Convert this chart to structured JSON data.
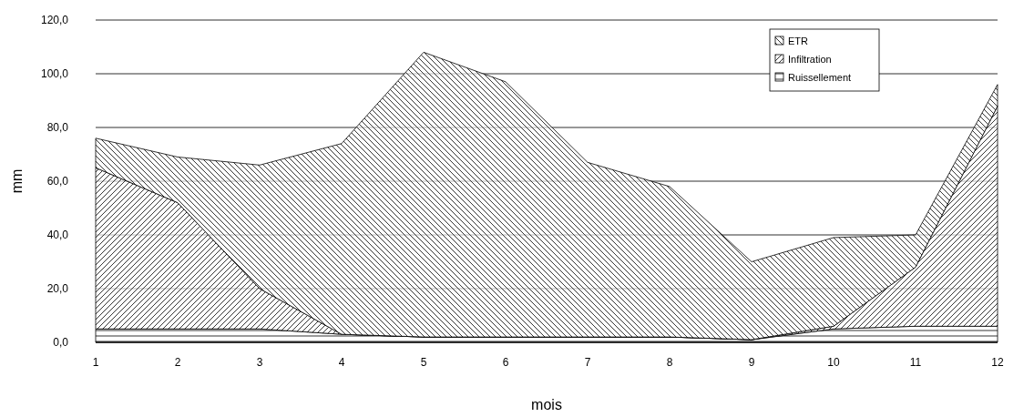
{
  "chart_data": {
    "type": "area",
    "stacked": true,
    "xlabel": "mois",
    "ylabel": "mm",
    "x": [
      1,
      2,
      3,
      4,
      5,
      6,
      7,
      8,
      9,
      10,
      11,
      12
    ],
    "xlim": [
      1,
      12
    ],
    "xticks": [
      1,
      2,
      3,
      4,
      5,
      6,
      7,
      8,
      9,
      10,
      11,
      12
    ],
    "ylim": [
      0,
      120
    ],
    "yticks": [
      {
        "value": 0,
        "label": "0,0"
      },
      {
        "value": 20,
        "label": "20,0"
      },
      {
        "value": 40,
        "label": "40,0"
      },
      {
        "value": 60,
        "label": "60,0"
      },
      {
        "value": 80,
        "label": "80,0"
      },
      {
        "value": 100,
        "label": "100,0"
      },
      {
        "value": 120,
        "label": "120,0"
      }
    ],
    "grid": "y",
    "legend": "top right",
    "series": [
      {
        "name": "Ruissellement",
        "color": "#000000",
        "values": [
          5,
          5,
          5,
          3,
          2,
          2,
          2,
          2,
          1,
          5,
          6,
          6
        ]
      },
      {
        "name": "Infiltration",
        "color": "#000000",
        "values": [
          60,
          47,
          15,
          0,
          0,
          0,
          0,
          0,
          0,
          1,
          22,
          82
        ]
      },
      {
        "name": "ETR",
        "color": "#000000",
        "values": [
          11,
          17,
          46,
          71,
          106,
          95,
          65,
          56,
          29,
          33,
          12,
          8
        ]
      }
    ]
  }
}
